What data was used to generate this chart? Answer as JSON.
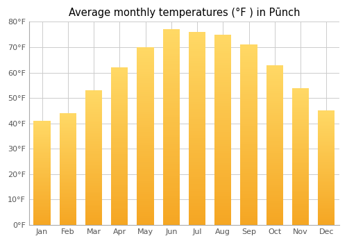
{
  "title": "Average monthly temperatures (°F ) in Pūnch",
  "months": [
    "Jan",
    "Feb",
    "Mar",
    "Apr",
    "May",
    "Jun",
    "Jul",
    "Aug",
    "Sep",
    "Oct",
    "Nov",
    "Dec"
  ],
  "temps": [
    41,
    44,
    53,
    62,
    70,
    77,
    76,
    75,
    71,
    63,
    54,
    45
  ],
  "ylim": [
    0,
    80
  ],
  "yticks": [
    0,
    10,
    20,
    30,
    40,
    50,
    60,
    70,
    80
  ],
  "ytick_labels": [
    "0°F",
    "10°F",
    "20°F",
    "30°F",
    "40°F",
    "50°F",
    "60°F",
    "70°F",
    "80°F"
  ],
  "background_color": "#ffffff",
  "title_fontsize": 10.5,
  "tick_fontsize": 8,
  "grid_color": "#cccccc",
  "bar_color_bottom": "#F5A623",
  "bar_color_top": "#FFD966",
  "bar_width": 0.65
}
